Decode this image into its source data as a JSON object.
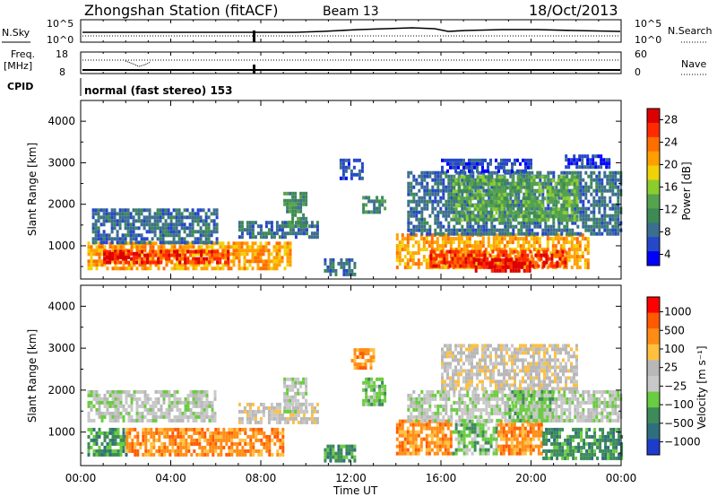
{
  "header": {
    "title": "Zhongshan Station (fitACF)",
    "beam": "Beam 13",
    "date": "18/Oct/2013"
  },
  "nsky_panel": {
    "left_label": "N.Sky",
    "left_ticks": [
      "10^5",
      "10^0"
    ],
    "right_label": "N.Search",
    "right_ticks": [
      "10^5",
      "10^0"
    ]
  },
  "freq_panel": {
    "left_label_line1": "Freq.",
    "left_label_line2": "[MHz]",
    "left_ticks": [
      "18",
      "8"
    ],
    "right_label": "Nave",
    "right_ticks": [
      "60",
      "0"
    ]
  },
  "cpid": {
    "label": "CPID",
    "mode": "normal (fast stereo) 153"
  },
  "colors": {
    "power": [
      "#0000ff",
      "#2547c8",
      "#3c6e8f",
      "#3e8a55",
      "#55a34e",
      "#8ccd2e",
      "#f0d20a",
      "#ffa000",
      "#ff6e00",
      "#ff2a00",
      "#dc0000"
    ],
    "velocity": [
      "#1e3ccc",
      "#2e6f7d",
      "#3d8a5a",
      "#6acc40",
      "#c8c8c8",
      "#b8b8b8",
      "#ffc040",
      "#ff8c14",
      "#ff5a00",
      "#ff0000"
    ]
  },
  "chart_data": [
    {
      "type": "heatmap",
      "name": "power",
      "ylabel": "Slant Range [km]",
      "ylim": [
        200,
        4500
      ],
      "yticks": [
        "1000",
        "2000",
        "3000",
        "4000"
      ],
      "xlim": [
        0,
        24
      ],
      "xlabel": "Time UT",
      "xticks": [
        "00:00",
        "04:00",
        "08:00",
        "12:00",
        "16:00",
        "20:00",
        "00:00"
      ],
      "colorbar": {
        "label": "Power [dB]",
        "ticks": [
          "4",
          "8",
          "12",
          "16",
          "20",
          "24",
          "28"
        ]
      },
      "regions": [
        {
          "t": [
            0.3,
            9.3
          ],
          "r": [
            450,
            1100
          ],
          "level": 7
        },
        {
          "t": [
            1.0,
            6.5
          ],
          "r": [
            600,
            900
          ],
          "level": 9
        },
        {
          "t": [
            1.0,
            2.5
          ],
          "r": [
            700,
            850
          ],
          "level": 10
        },
        {
          "t": [
            0.5,
            6.0
          ],
          "r": [
            1100,
            1900
          ],
          "level": 2
        },
        {
          "t": [
            7.0,
            10.5
          ],
          "r": [
            1200,
            1600
          ],
          "level": 2
        },
        {
          "t": [
            9.0,
            10.0
          ],
          "r": [
            1500,
            2300
          ],
          "level": 3
        },
        {
          "t": [
            10.8,
            12.2
          ],
          "r": [
            350,
            700
          ],
          "level": 2
        },
        {
          "t": [
            11.5,
            12.5
          ],
          "r": [
            2600,
            3100
          ],
          "level": 1
        },
        {
          "t": [
            12.5,
            13.5
          ],
          "r": [
            1800,
            2200
          ],
          "level": 3
        },
        {
          "t": [
            14.0,
            22.5
          ],
          "r": [
            500,
            1300
          ],
          "level": 7
        },
        {
          "t": [
            15.5,
            21.5
          ],
          "r": [
            500,
            900
          ],
          "level": 9
        },
        {
          "t": [
            17.5,
            20.0
          ],
          "r": [
            400,
            700
          ],
          "level": 10
        },
        {
          "t": [
            14.5,
            24.0
          ],
          "r": [
            1300,
            2800
          ],
          "level": 2
        },
        {
          "t": [
            16.5,
            22.0
          ],
          "r": [
            1600,
            2700
          ],
          "level": 4
        },
        {
          "t": [
            16.0,
            20.0
          ],
          "r": [
            2800,
            3100
          ],
          "level": 1
        },
        {
          "t": [
            21.5,
            23.5
          ],
          "r": [
            2900,
            3200
          ],
          "level": 1
        }
      ]
    },
    {
      "type": "heatmap",
      "name": "velocity",
      "ylabel": "Slant Range [km]",
      "ylim": [
        200,
        4500
      ],
      "yticks": [
        "1000",
        "2000",
        "3000",
        "4000"
      ],
      "xlim": [
        0,
        24
      ],
      "xlabel": "Time UT",
      "xticks": [
        "00:00",
        "04:00",
        "08:00",
        "12:00",
        "16:00",
        "20:00",
        "00:00"
      ],
      "colorbar": {
        "label": "Velocity [m s⁻¹]",
        "ticks": [
          "1000",
          "500",
          "100",
          "25",
          "−25",
          "−100",
          "−500",
          "−1000"
        ]
      },
      "regions": [
        {
          "t": [
            0.3,
            2.0
          ],
          "r": [
            500,
            1100
          ],
          "level": 2
        },
        {
          "t": [
            2.0,
            9.0
          ],
          "r": [
            500,
            1100
          ],
          "level": 7
        },
        {
          "t": [
            0.3,
            6.0
          ],
          "r": [
            1300,
            2000
          ],
          "level": 4
        },
        {
          "t": [
            7.0,
            10.5
          ],
          "r": [
            1200,
            1700
          ],
          "level": 5
        },
        {
          "t": [
            9.0,
            10.0
          ],
          "r": [
            1500,
            2300
          ],
          "level": 4
        },
        {
          "t": [
            10.8,
            12.2
          ],
          "r": [
            350,
            700
          ],
          "level": 2
        },
        {
          "t": [
            12.0,
            13.0
          ],
          "r": [
            2500,
            3000
          ],
          "level": 7
        },
        {
          "t": [
            12.5,
            13.5
          ],
          "r": [
            1700,
            2300
          ],
          "level": 3
        },
        {
          "t": [
            14.0,
            16.5
          ],
          "r": [
            500,
            1300
          ],
          "level": 7
        },
        {
          "t": [
            16.5,
            18.5
          ],
          "r": [
            500,
            1300
          ],
          "level": 3
        },
        {
          "t": [
            18.5,
            20.5
          ],
          "r": [
            500,
            1300
          ],
          "level": 7
        },
        {
          "t": [
            20.5,
            24.0
          ],
          "r": [
            400,
            1100
          ],
          "level": 2
        },
        {
          "t": [
            14.5,
            24.0
          ],
          "r": [
            1300,
            2000
          ],
          "level": 4
        },
        {
          "t": [
            16.0,
            22.0
          ],
          "r": [
            2000,
            3100
          ],
          "level": 5
        },
        {
          "t": [
            19.0,
            21.0
          ],
          "r": [
            1300,
            2000
          ],
          "level": 3
        }
      ]
    }
  ]
}
